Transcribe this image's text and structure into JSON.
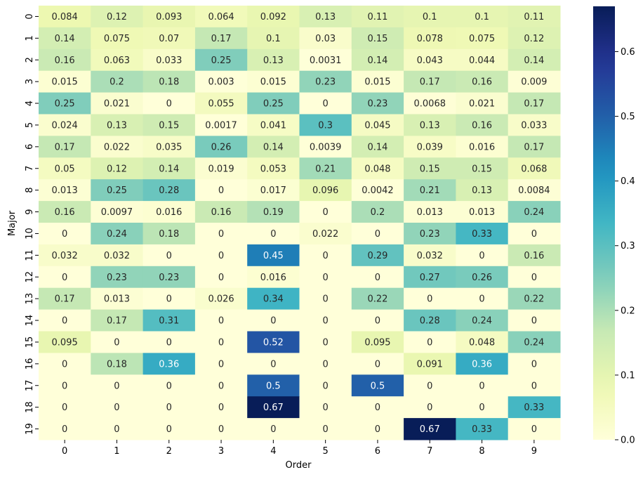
{
  "chart_data": {
    "type": "heatmap",
    "xlabel": "Order",
    "ylabel": "Major",
    "x_categories": [
      "0",
      "1",
      "2",
      "3",
      "4",
      "5",
      "6",
      "7",
      "8",
      "9"
    ],
    "y_categories": [
      "0",
      "1",
      "2",
      "3",
      "4",
      "5",
      "6",
      "7",
      "8",
      "9",
      "10",
      "11",
      "12",
      "13",
      "14",
      "15",
      "16",
      "17",
      "18",
      "19"
    ],
    "values": [
      [
        0.084,
        0.12,
        0.093,
        0.064,
        0.092,
        0.13,
        0.11,
        0.1,
        0.1,
        0.11
      ],
      [
        0.14,
        0.075,
        0.07,
        0.17,
        0.1,
        0.03,
        0.15,
        0.078,
        0.075,
        0.12
      ],
      [
        0.16,
        0.063,
        0.033,
        0.25,
        0.13,
        0.0031,
        0.14,
        0.043,
        0.044,
        0.14
      ],
      [
        0.015,
        0.2,
        0.18,
        0.003,
        0.015,
        0.23,
        0.015,
        0.17,
        0.16,
        0.009
      ],
      [
        0.25,
        0.021,
        0,
        0.055,
        0.25,
        0,
        0.23,
        0.0068,
        0.021,
        0.17
      ],
      [
        0.024,
        0.13,
        0.15,
        0.0017,
        0.041,
        0.3,
        0.045,
        0.13,
        0.16,
        0.033
      ],
      [
        0.17,
        0.022,
        0.035,
        0.26,
        0.14,
        0.0039,
        0.14,
        0.039,
        0.016,
        0.17
      ],
      [
        0.05,
        0.12,
        0.14,
        0.019,
        0.053,
        0.21,
        0.048,
        0.15,
        0.15,
        0.068
      ],
      [
        0.013,
        0.25,
        0.28,
        0,
        0.017,
        0.096,
        0.0042,
        0.21,
        0.13,
        0.0084
      ],
      [
        0.16,
        0.0097,
        0.016,
        0.16,
        0.19,
        0,
        0.2,
        0.013,
        0.013,
        0.24
      ],
      [
        0,
        0.24,
        0.18,
        0,
        0,
        0.022,
        0,
        0.23,
        0.33,
        0
      ],
      [
        0.032,
        0.032,
        0,
        0,
        0.45,
        0,
        0.29,
        0.032,
        0,
        0.16
      ],
      [
        0,
        0.23,
        0.23,
        0,
        0.016,
        0,
        0,
        0.27,
        0.26,
        0
      ],
      [
        0.17,
        0.013,
        0,
        0.026,
        0.34,
        0,
        0.22,
        0,
        0,
        0.22
      ],
      [
        0,
        0.17,
        0.31,
        0,
        0,
        0,
        0,
        0.28,
        0.24,
        0
      ],
      [
        0.095,
        0,
        0,
        0,
        0.52,
        0,
        0.095,
        0,
        0.048,
        0.24
      ],
      [
        0,
        0.18,
        0.36,
        0,
        0,
        0,
        0,
        0.091,
        0.36,
        0
      ],
      [
        0,
        0,
        0,
        0,
        0.5,
        0,
        0.5,
        0,
        0,
        0
      ],
      [
        0,
        0,
        0,
        0,
        0.67,
        0,
        0,
        0,
        0,
        0.33
      ],
      [
        0,
        0,
        0,
        0,
        0,
        0,
        0,
        0.67,
        0.33,
        0
      ]
    ],
    "colormap": "YlGnBu",
    "colorbar": {
      "min": 0.0,
      "max": 0.67,
      "ticks": [
        0.0,
        0.1,
        0.2,
        0.3,
        0.4,
        0.5,
        0.6
      ],
      "tick_labels": [
        "0.0",
        "0.1",
        "0.2",
        "0.3",
        "0.4",
        "0.5",
        "0.6"
      ]
    },
    "annotations": true,
    "grid": false,
    "legend": "colorbar-right"
  }
}
